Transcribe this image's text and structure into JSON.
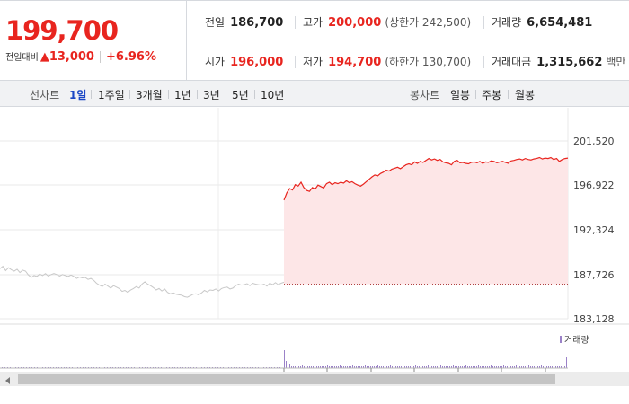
{
  "quote": {
    "price": "199,700",
    "change_label": "전일대비",
    "change": "13,000",
    "rate": "+6.96%"
  },
  "summary": {
    "prev_close": {
      "label": "전일",
      "value": "186,700"
    },
    "high": {
      "label": "고가",
      "value": "200,000",
      "sub": "(상한가 242,500)"
    },
    "volume": {
      "label": "거래량",
      "value": "6,654,481"
    },
    "open": {
      "label": "시가",
      "value": "196,000"
    },
    "low": {
      "label": "저가",
      "value": "194,700",
      "sub": "(하한가 130,700)"
    },
    "amount": {
      "label": "거래대금",
      "value": "1,315,662",
      "unit": "백만"
    }
  },
  "toolbar": {
    "line_chart_label": "선차트",
    "periods": [
      "1일",
      "1주일",
      "3개월",
      "1년",
      "3년",
      "5년",
      "10년"
    ],
    "active_period": "1일",
    "candle_label": "봉차트",
    "candles": [
      "일봉",
      "주봉",
      "월봉"
    ]
  },
  "colors": {
    "up": "#e8251f",
    "down": "#1a46c5",
    "area_fill": "#fde6e7",
    "prev_line": "#c8c8c8",
    "volume": "#9b82c8"
  },
  "chart_data": {
    "type": "line",
    "title": "",
    "xlabel": "",
    "ylabel": "",
    "ylim": [
      183128,
      201520
    ],
    "yticks": [
      "201,520",
      "196,922",
      "192,324",
      "187,726",
      "183,128"
    ],
    "baseline": 186700,
    "volume_legend": "거래량",
    "series": [
      {
        "x": [
          0,
          2,
          4,
          6,
          8,
          10,
          12,
          14,
          16,
          18,
          20,
          22,
          24,
          26,
          28,
          30,
          32,
          34,
          36,
          38,
          40,
          42,
          44,
          46,
          48,
          50,
          52,
          54,
          56,
          58,
          60,
          62,
          64,
          66,
          68,
          70,
          72,
          74,
          76,
          78,
          80,
          82,
          84,
          86,
          88,
          90,
          92,
          94,
          96,
          98,
          100,
          102,
          104,
          106,
          108,
          110,
          112,
          114,
          116,
          118,
          120,
          122,
          124,
          126,
          128,
          130,
          132,
          134,
          136,
          138,
          140,
          142,
          144,
          146,
          148,
          150,
          152,
          154,
          156,
          158,
          160,
          162,
          164,
          166,
          168,
          170,
          172,
          174,
          176,
          178,
          180,
          182,
          184,
          186,
          188,
          190,
          192,
          194,
          196,
          198,
          200
        ],
        "y": [
          188300,
          188550,
          188100,
          188400,
          188200,
          188050,
          188250,
          187900,
          188150,
          188050,
          187650,
          187400,
          187600,
          187500,
          187750,
          187600,
          187800,
          187550,
          187700,
          187800,
          187700,
          187550,
          187700,
          187600,
          187500,
          187650,
          187500,
          187300,
          187450,
          187350,
          187400,
          187200,
          187300,
          187100,
          186800,
          186600,
          186450,
          186700,
          186500,
          186300,
          186550,
          186400,
          186250,
          185950,
          186050,
          185850,
          186100,
          186250,
          186450,
          186300,
          186700,
          186950,
          186700,
          186550,
          186350,
          186100,
          186250,
          186000,
          186200,
          185850,
          185700,
          185800,
          185650,
          185600,
          185550,
          185400,
          185350,
          185500,
          185650,
          185700,
          185600,
          185800,
          186050,
          185900,
          186100,
          186050,
          186200,
          186000,
          186250,
          186350,
          186400,
          186200,
          186300,
          186550,
          186700,
          186600,
          186650,
          186750,
          186550,
          186800,
          186700,
          186650,
          186600,
          186700,
          186500,
          186800,
          186650,
          186850,
          186650,
          186800,
          186900
        ]
      },
      {
        "x": [
          200,
          202,
          204,
          206,
          208,
          210,
          212,
          214,
          216,
          218,
          220,
          222,
          224,
          226,
          228,
          230,
          232,
          234,
          236,
          238,
          240,
          242,
          244,
          246,
          248,
          250,
          252,
          254,
          256,
          258,
          260,
          262,
          264,
          266,
          268,
          270,
          272,
          274,
          276,
          278,
          280,
          282,
          284,
          286,
          288,
          290,
          292,
          294,
          296,
          298,
          300,
          302,
          304,
          306,
          308,
          310,
          312,
          314,
          316,
          318,
          320,
          322,
          324,
          326,
          328,
          330,
          332,
          334,
          336,
          338,
          340,
          342,
          344,
          346,
          348,
          350,
          352,
          354,
          356,
          358,
          360,
          362,
          364,
          366,
          368,
          370,
          372,
          374,
          376,
          378,
          380,
          382,
          384,
          386,
          388,
          390,
          392,
          394,
          396,
          398,
          400
        ],
        "y": [
          195400,
          196150,
          196600,
          196450,
          197000,
          196850,
          197250,
          196700,
          196400,
          196300,
          196700,
          196550,
          196950,
          196800,
          196650,
          197100,
          197250,
          197000,
          197200,
          197100,
          197250,
          197150,
          197400,
          197200,
          197300,
          197100,
          196950,
          196850,
          197050,
          197300,
          197550,
          197800,
          198000,
          197900,
          198150,
          198300,
          198500,
          198400,
          198600,
          198700,
          198800,
          198650,
          198850,
          199050,
          199150,
          199050,
          199350,
          199200,
          199400,
          199300,
          199500,
          199700,
          199550,
          199650,
          199500,
          199600,
          199350,
          199250,
          199200,
          199050,
          199400,
          199500,
          199250,
          199300,
          199200,
          199150,
          199300,
          199350,
          199250,
          199400,
          199200,
          199350,
          199300,
          199450,
          199400,
          199250,
          199350,
          199400,
          199300,
          199200,
          199450,
          199500,
          199600,
          199650,
          199550,
          199700,
          199600,
          199550,
          199650,
          199700,
          199800,
          199650,
          199750,
          199700,
          199800,
          199600,
          199700,
          199400,
          199600,
          199700,
          199750
        ]
      }
    ]
  }
}
